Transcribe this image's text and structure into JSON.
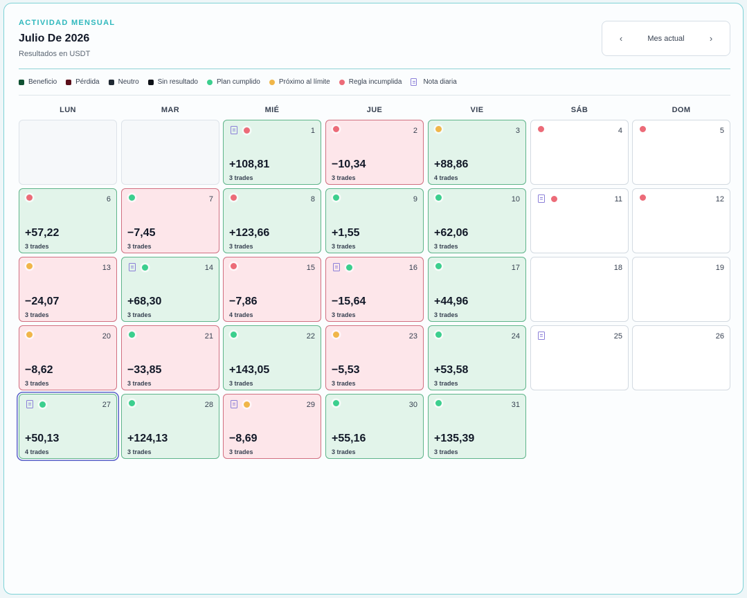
{
  "header": {
    "eyebrow": "ACTIVIDAD MENSUAL",
    "title": "Julio De 2026",
    "subtitle": "Resultados en USDT"
  },
  "month_nav": {
    "prev": "‹",
    "label": "Mes actual",
    "next": "›"
  },
  "legend": [
    {
      "label": "Beneficio",
      "kind": "square",
      "color": "#0f5132"
    },
    {
      "label": "Pérdida",
      "kind": "square",
      "color": "#5a0f1a"
    },
    {
      "label": "Neutro",
      "kind": "square",
      "color": "#1f2933"
    },
    {
      "label": "Sin resultado",
      "kind": "square",
      "color": "#0d1117"
    },
    {
      "label": "Plan cumplido",
      "kind": "dot",
      "color": "#3ccf8e"
    },
    {
      "label": "Próximo al límite",
      "kind": "dot",
      "color": "#f0b649"
    },
    {
      "label": "Regla incumplida",
      "kind": "dot",
      "color": "#ec6b78"
    },
    {
      "label": "Nota diaria",
      "kind": "note",
      "color": "#8b7fd8"
    }
  ],
  "status_colors": {
    "green": "#3ccf8e",
    "orange": "#f0b649",
    "red": "#ec6b78"
  },
  "weekdays": [
    "LUN",
    "MAR",
    "MIÉ",
    "JUE",
    "VIE",
    "SÁB",
    "DOM"
  ],
  "days": [
    {
      "day": "1",
      "pnl": "+108,81",
      "trades": "3 trades",
      "result": "profit",
      "status": "red",
      "note": true
    },
    {
      "day": "2",
      "pnl": "−10,34",
      "trades": "3 trades",
      "result": "loss",
      "status": "red",
      "note": false
    },
    {
      "day": "3",
      "pnl": "+88,86",
      "trades": "4 trades",
      "result": "profit",
      "status": "orange",
      "note": false
    },
    {
      "day": "4",
      "pnl": "",
      "trades": "",
      "result": "neutral",
      "status": "red",
      "note": false
    },
    {
      "day": "5",
      "pnl": "",
      "trades": "",
      "result": "neutral",
      "status": "red",
      "note": false
    },
    {
      "day": "6",
      "pnl": "+57,22",
      "trades": "3 trades",
      "result": "profit",
      "status": "red",
      "note": false
    },
    {
      "day": "7",
      "pnl": "−7,45",
      "trades": "3 trades",
      "result": "loss",
      "status": "green",
      "note": false
    },
    {
      "day": "8",
      "pnl": "+123,66",
      "trades": "3 trades",
      "result": "profit",
      "status": "red",
      "note": false
    },
    {
      "day": "9",
      "pnl": "+1,55",
      "trades": "3 trades",
      "result": "profit",
      "status": "green",
      "note": false
    },
    {
      "day": "10",
      "pnl": "+62,06",
      "trades": "3 trades",
      "result": "profit",
      "status": "green",
      "note": false
    },
    {
      "day": "11",
      "pnl": "",
      "trades": "",
      "result": "neutral",
      "status": "red",
      "note": true
    },
    {
      "day": "12",
      "pnl": "",
      "trades": "",
      "result": "neutral",
      "status": "red",
      "note": false
    },
    {
      "day": "13",
      "pnl": "−24,07",
      "trades": "3 trades",
      "result": "loss",
      "status": "orange",
      "note": false
    },
    {
      "day": "14",
      "pnl": "+68,30",
      "trades": "3 trades",
      "result": "profit",
      "status": "green",
      "note": true
    },
    {
      "day": "15",
      "pnl": "−7,86",
      "trades": "4 trades",
      "result": "loss",
      "status": "red",
      "note": false
    },
    {
      "day": "16",
      "pnl": "−15,64",
      "trades": "3 trades",
      "result": "loss",
      "status": "green",
      "note": true
    },
    {
      "day": "17",
      "pnl": "+44,96",
      "trades": "3 trades",
      "result": "profit",
      "status": "green",
      "note": false
    },
    {
      "day": "18",
      "pnl": "",
      "trades": "",
      "result": "neutral",
      "status": "",
      "note": false
    },
    {
      "day": "19",
      "pnl": "",
      "trades": "",
      "result": "neutral",
      "status": "",
      "note": false
    },
    {
      "day": "20",
      "pnl": "−8,62",
      "trades": "3 trades",
      "result": "loss",
      "status": "orange",
      "note": false
    },
    {
      "day": "21",
      "pnl": "−33,85",
      "trades": "3 trades",
      "result": "loss",
      "status": "green",
      "note": false
    },
    {
      "day": "22",
      "pnl": "+143,05",
      "trades": "3 trades",
      "result": "profit",
      "status": "green",
      "note": false
    },
    {
      "day": "23",
      "pnl": "−5,53",
      "trades": "3 trades",
      "result": "loss",
      "status": "orange",
      "note": false
    },
    {
      "day": "24",
      "pnl": "+53,58",
      "trades": "3 trades",
      "result": "profit",
      "status": "green",
      "note": false
    },
    {
      "day": "25",
      "pnl": "",
      "trades": "",
      "result": "neutral",
      "status": "",
      "note": true
    },
    {
      "day": "26",
      "pnl": "",
      "trades": "",
      "result": "neutral",
      "status": "",
      "note": false
    },
    {
      "day": "27",
      "pnl": "+50,13",
      "trades": "4 trades",
      "result": "profit",
      "status": "green",
      "note": true,
      "selected": true
    },
    {
      "day": "28",
      "pnl": "+124,13",
      "trades": "3 trades",
      "result": "profit",
      "status": "green",
      "note": false
    },
    {
      "day": "29",
      "pnl": "−8,69",
      "trades": "3 trades",
      "result": "loss",
      "status": "orange",
      "note": true
    },
    {
      "day": "30",
      "pnl": "+55,16",
      "trades": "3 trades",
      "result": "profit",
      "status": "green",
      "note": false
    },
    {
      "day": "31",
      "pnl": "+135,39",
      "trades": "3 trades",
      "result": "profit",
      "status": "green",
      "note": false
    }
  ]
}
